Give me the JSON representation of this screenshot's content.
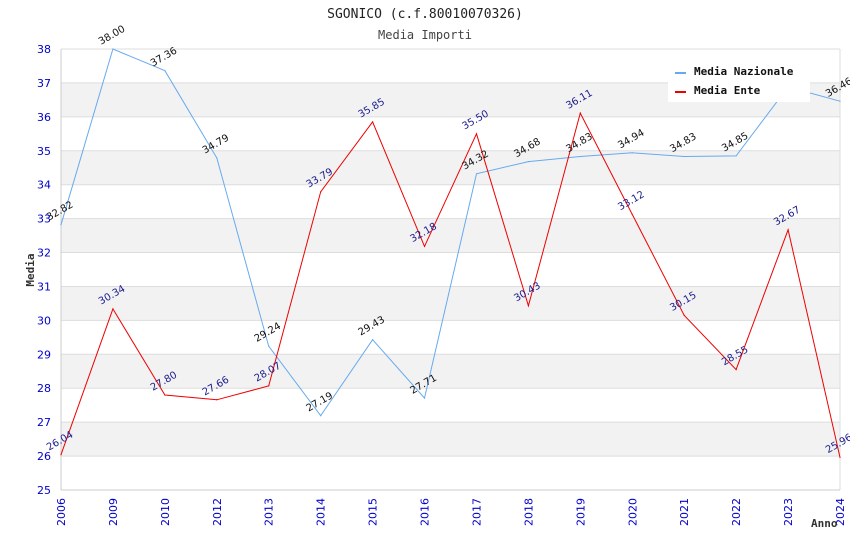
{
  "chart_data": {
    "type": "line",
    "title": "SGONICO (c.f.80010070326)",
    "subtitle": "Media Importi",
    "xlabel": "Anno",
    "ylabel": "Media",
    "ylim": [
      25,
      38
    ],
    "yticks": [
      25,
      26,
      27,
      28,
      29,
      30,
      31,
      32,
      33,
      34,
      35,
      36,
      37,
      38
    ],
    "categories": [
      "2006",
      "2009",
      "2010",
      "2012",
      "2013",
      "2014",
      "2015",
      "2016",
      "2017",
      "2018",
      "2019",
      "2020",
      "2021",
      "2022",
      "2023",
      "2024"
    ],
    "grid": true,
    "legend_position": "top-right",
    "series": [
      {
        "name": "Media Nazionale",
        "color": "#66aaee",
        "label_color": "#111111",
        "values": [
          32.82,
          38.0,
          37.36,
          34.79,
          29.24,
          27.19,
          29.43,
          27.71,
          34.32,
          34.68,
          34.83,
          34.94,
          34.83,
          34.85,
          36.88,
          36.46
        ],
        "labels": [
          "32.82",
          "38.00",
          "37.36",
          "34.79",
          "29.24",
          "27.19",
          "29.43",
          "27.71",
          "34.32",
          "34.68",
          "34.83",
          "34.94",
          "34.83",
          "34.85",
          "36.88",
          "36.46"
        ]
      },
      {
        "name": "Media Ente",
        "color": "#ee0000",
        "label_color": "#1a1a8c",
        "values": [
          26.04,
          30.34,
          27.8,
          27.66,
          28.07,
          33.79,
          35.85,
          32.18,
          35.5,
          30.43,
          36.11,
          33.12,
          30.15,
          28.55,
          32.67,
          25.96
        ],
        "labels": [
          "26.04",
          "30.34",
          "27.80",
          "27.66",
          "28.07",
          "33.79",
          "35.85",
          "32.18",
          "35.50",
          "30.43",
          "36.11",
          "33.12",
          "30.15",
          "28.55",
          "32.67",
          "25.96"
        ]
      }
    ]
  }
}
